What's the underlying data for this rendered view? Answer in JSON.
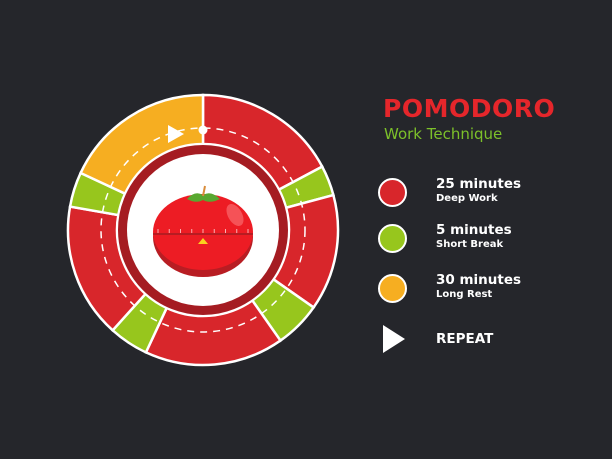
{
  "title": "POMODORO",
  "subtitle": "Work Technique",
  "colors": {
    "background": "#25262b",
    "work": "#d8262b",
    "short_break": "#97c61d",
    "long_rest": "#f6ae21",
    "title": "#e5262b",
    "subtitle": "#7cc02a"
  },
  "legend": [
    {
      "duration": "25 minutes",
      "label": "Deep Work",
      "color": "#d8262b"
    },
    {
      "duration": "5 minutes",
      "label": "Short Break",
      "color": "#97c61d"
    },
    {
      "duration": "30 minutes",
      "label": "Long Rest",
      "color": "#f6ae21"
    }
  ],
  "repeat_label": "REPEAT",
  "cycle": [
    "work",
    "short_break",
    "work",
    "short_break",
    "work",
    "short_break",
    "work",
    "short_break",
    "long_rest"
  ],
  "icons": {
    "center": "tomato-timer-icon",
    "repeat": "play-triangle-icon"
  }
}
